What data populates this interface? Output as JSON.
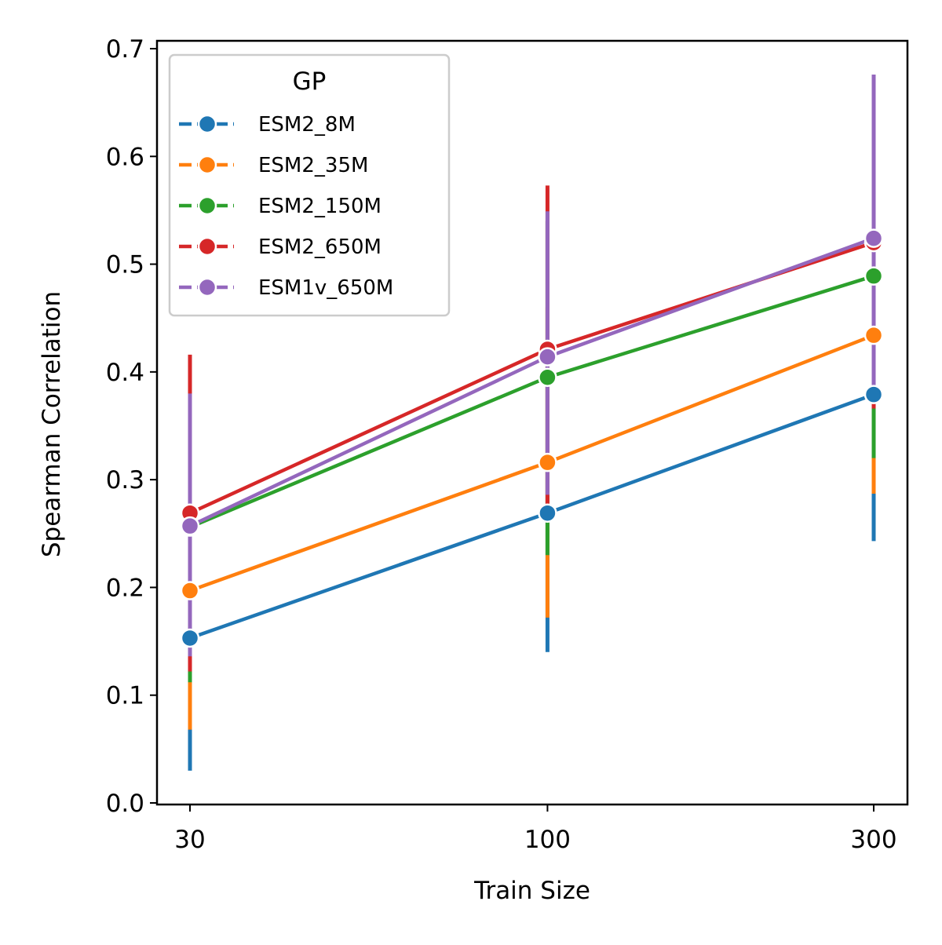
{
  "chart_data": {
    "type": "line",
    "x_scale": "log",
    "x": [
      30,
      100,
      300
    ],
    "xlabel": "Train Size",
    "ylabel": "Spearman Correlation",
    "ylim": [
      0.0,
      0.7
    ],
    "x_ticks": [
      "30",
      "100",
      "300"
    ],
    "y_ticks": [
      "0.0",
      "0.1",
      "0.2",
      "0.3",
      "0.4",
      "0.5",
      "0.6",
      "0.7"
    ],
    "grid": false,
    "legend": {
      "title": "GP",
      "placement": "top-left"
    },
    "series": [
      {
        "name": "ESM2_8M",
        "color": "#1f77b4",
        "values": [
          0.153,
          0.269,
          0.379
        ],
        "err_low": [
          0.03,
          0.14,
          0.243
        ],
        "err_high": [
          0.258,
          0.398,
          0.505
        ]
      },
      {
        "name": "ESM2_35M",
        "color": "#ff7f0e",
        "values": [
          0.197,
          0.316,
          0.434
        ],
        "err_low": [
          0.068,
          0.172,
          0.287
        ],
        "err_high": [
          0.332,
          0.46,
          0.58
        ]
      },
      {
        "name": "ESM2_150M",
        "color": "#2ca02c",
        "values": [
          0.256,
          0.395,
          0.489
        ],
        "err_low": [
          0.112,
          0.23,
          0.32
        ],
        "err_high": [
          0.382,
          0.54,
          0.628
        ]
      },
      {
        "name": "ESM2_650M",
        "color": "#d62728",
        "values": [
          0.269,
          0.421,
          0.52
        ],
        "err_low": [
          0.122,
          0.272,
          0.366
        ],
        "err_high": [
          0.416,
          0.573,
          0.66
        ]
      },
      {
        "name": "ESM1v_650M",
        "color": "#9467bd",
        "values": [
          0.257,
          0.414,
          0.524
        ],
        "err_low": [
          0.136,
          0.286,
          0.378
        ],
        "err_high": [
          0.38,
          0.549,
          0.676
        ]
      }
    ]
  }
}
